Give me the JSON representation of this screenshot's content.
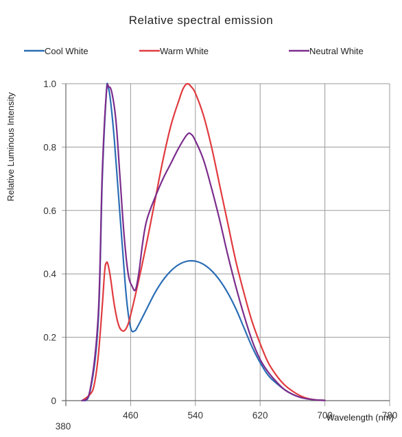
{
  "chart_data": {
    "type": "line",
    "title": "Relative spectral emission",
    "xlabel": "Wavelength (nm)",
    "ylabel": "Relative Luminous Intensity",
    "xlim": [
      380,
      780
    ],
    "ylim": [
      0,
      1.0
    ],
    "x_ticks": [
      "380",
      "460",
      "540",
      "620",
      "700",
      "780"
    ],
    "y_ticks": [
      "0",
      "0.2",
      "0.4",
      "0.6",
      "0.8",
      "1.0"
    ],
    "grid": true,
    "legend_position": "top",
    "series": [
      {
        "name": "Cool White",
        "color": "#2a6db5",
        "points": [
          [
            400,
            0
          ],
          [
            410,
            0.03
          ],
          [
            420,
            0.25
          ],
          [
            425,
            0.7
          ],
          [
            430,
            0.97
          ],
          [
            432,
            0.99
          ],
          [
            435,
            0.95
          ],
          [
            440,
            0.82
          ],
          [
            445,
            0.65
          ],
          [
            450,
            0.48
          ],
          [
            455,
            0.32
          ],
          [
            460,
            0.23
          ],
          [
            465,
            0.22
          ],
          [
            470,
            0.24
          ],
          [
            480,
            0.29
          ],
          [
            490,
            0.34
          ],
          [
            500,
            0.38
          ],
          [
            510,
            0.41
          ],
          [
            520,
            0.43
          ],
          [
            530,
            0.44
          ],
          [
            540,
            0.44
          ],
          [
            550,
            0.43
          ],
          [
            560,
            0.41
          ],
          [
            570,
            0.38
          ],
          [
            580,
            0.34
          ],
          [
            590,
            0.29
          ],
          [
            600,
            0.23
          ],
          [
            610,
            0.17
          ],
          [
            620,
            0.12
          ],
          [
            630,
            0.08
          ],
          [
            640,
            0.055
          ],
          [
            650,
            0.035
          ],
          [
            660,
            0.02
          ],
          [
            670,
            0.01
          ],
          [
            680,
            0.005
          ],
          [
            690,
            0.002
          ],
          [
            700,
            0.001
          ]
        ]
      },
      {
        "name": "Warm White",
        "color": "#e03a3e",
        "points": [
          [
            400,
            0
          ],
          [
            410,
            0.02
          ],
          [
            415,
            0.05
          ],
          [
            420,
            0.14
          ],
          [
            425,
            0.3
          ],
          [
            428,
            0.41
          ],
          [
            430,
            0.435
          ],
          [
            432,
            0.43
          ],
          [
            435,
            0.39
          ],
          [
            440,
            0.3
          ],
          [
            445,
            0.24
          ],
          [
            450,
            0.22
          ],
          [
            455,
            0.23
          ],
          [
            460,
            0.27
          ],
          [
            470,
            0.38
          ],
          [
            480,
            0.5
          ],
          [
            490,
            0.63
          ],
          [
            500,
            0.76
          ],
          [
            510,
            0.87
          ],
          [
            520,
            0.95
          ],
          [
            525,
            0.985
          ],
          [
            530,
            1.0
          ],
          [
            535,
            0.99
          ],
          [
            540,
            0.97
          ],
          [
            550,
            0.9
          ],
          [
            560,
            0.8
          ],
          [
            570,
            0.68
          ],
          [
            580,
            0.56
          ],
          [
            590,
            0.44
          ],
          [
            600,
            0.34
          ],
          [
            610,
            0.25
          ],
          [
            620,
            0.18
          ],
          [
            630,
            0.12
          ],
          [
            640,
            0.08
          ],
          [
            650,
            0.05
          ],
          [
            660,
            0.03
          ],
          [
            670,
            0.015
          ],
          [
            680,
            0.006
          ],
          [
            690,
            0.002
          ],
          [
            700,
            0.001
          ]
        ]
      },
      {
        "name": "Neutral White",
        "color": "#7b2c8c",
        "points": [
          [
            400,
            0
          ],
          [
            410,
            0.035
          ],
          [
            420,
            0.27
          ],
          [
            425,
            0.72
          ],
          [
            430,
            0.97
          ],
          [
            433,
            0.99
          ],
          [
            437,
            0.97
          ],
          [
            442,
            0.88
          ],
          [
            447,
            0.7
          ],
          [
            452,
            0.52
          ],
          [
            457,
            0.4
          ],
          [
            462,
            0.36
          ],
          [
            466,
            0.35
          ],
          [
            470,
            0.4
          ],
          [
            475,
            0.5
          ],
          [
            480,
            0.57
          ],
          [
            490,
            0.64
          ],
          [
            500,
            0.7
          ],
          [
            510,
            0.75
          ],
          [
            520,
            0.8
          ],
          [
            530,
            0.84
          ],
          [
            535,
            0.84
          ],
          [
            540,
            0.82
          ],
          [
            550,
            0.76
          ],
          [
            560,
            0.67
          ],
          [
            570,
            0.57
          ],
          [
            580,
            0.46
          ],
          [
            590,
            0.36
          ],
          [
            600,
            0.27
          ],
          [
            610,
            0.19
          ],
          [
            620,
            0.13
          ],
          [
            630,
            0.09
          ],
          [
            640,
            0.06
          ],
          [
            650,
            0.035
          ],
          [
            660,
            0.02
          ],
          [
            670,
            0.01
          ],
          [
            680,
            0.005
          ],
          [
            690,
            0.002
          ],
          [
            700,
            0.001
          ]
        ]
      }
    ]
  }
}
